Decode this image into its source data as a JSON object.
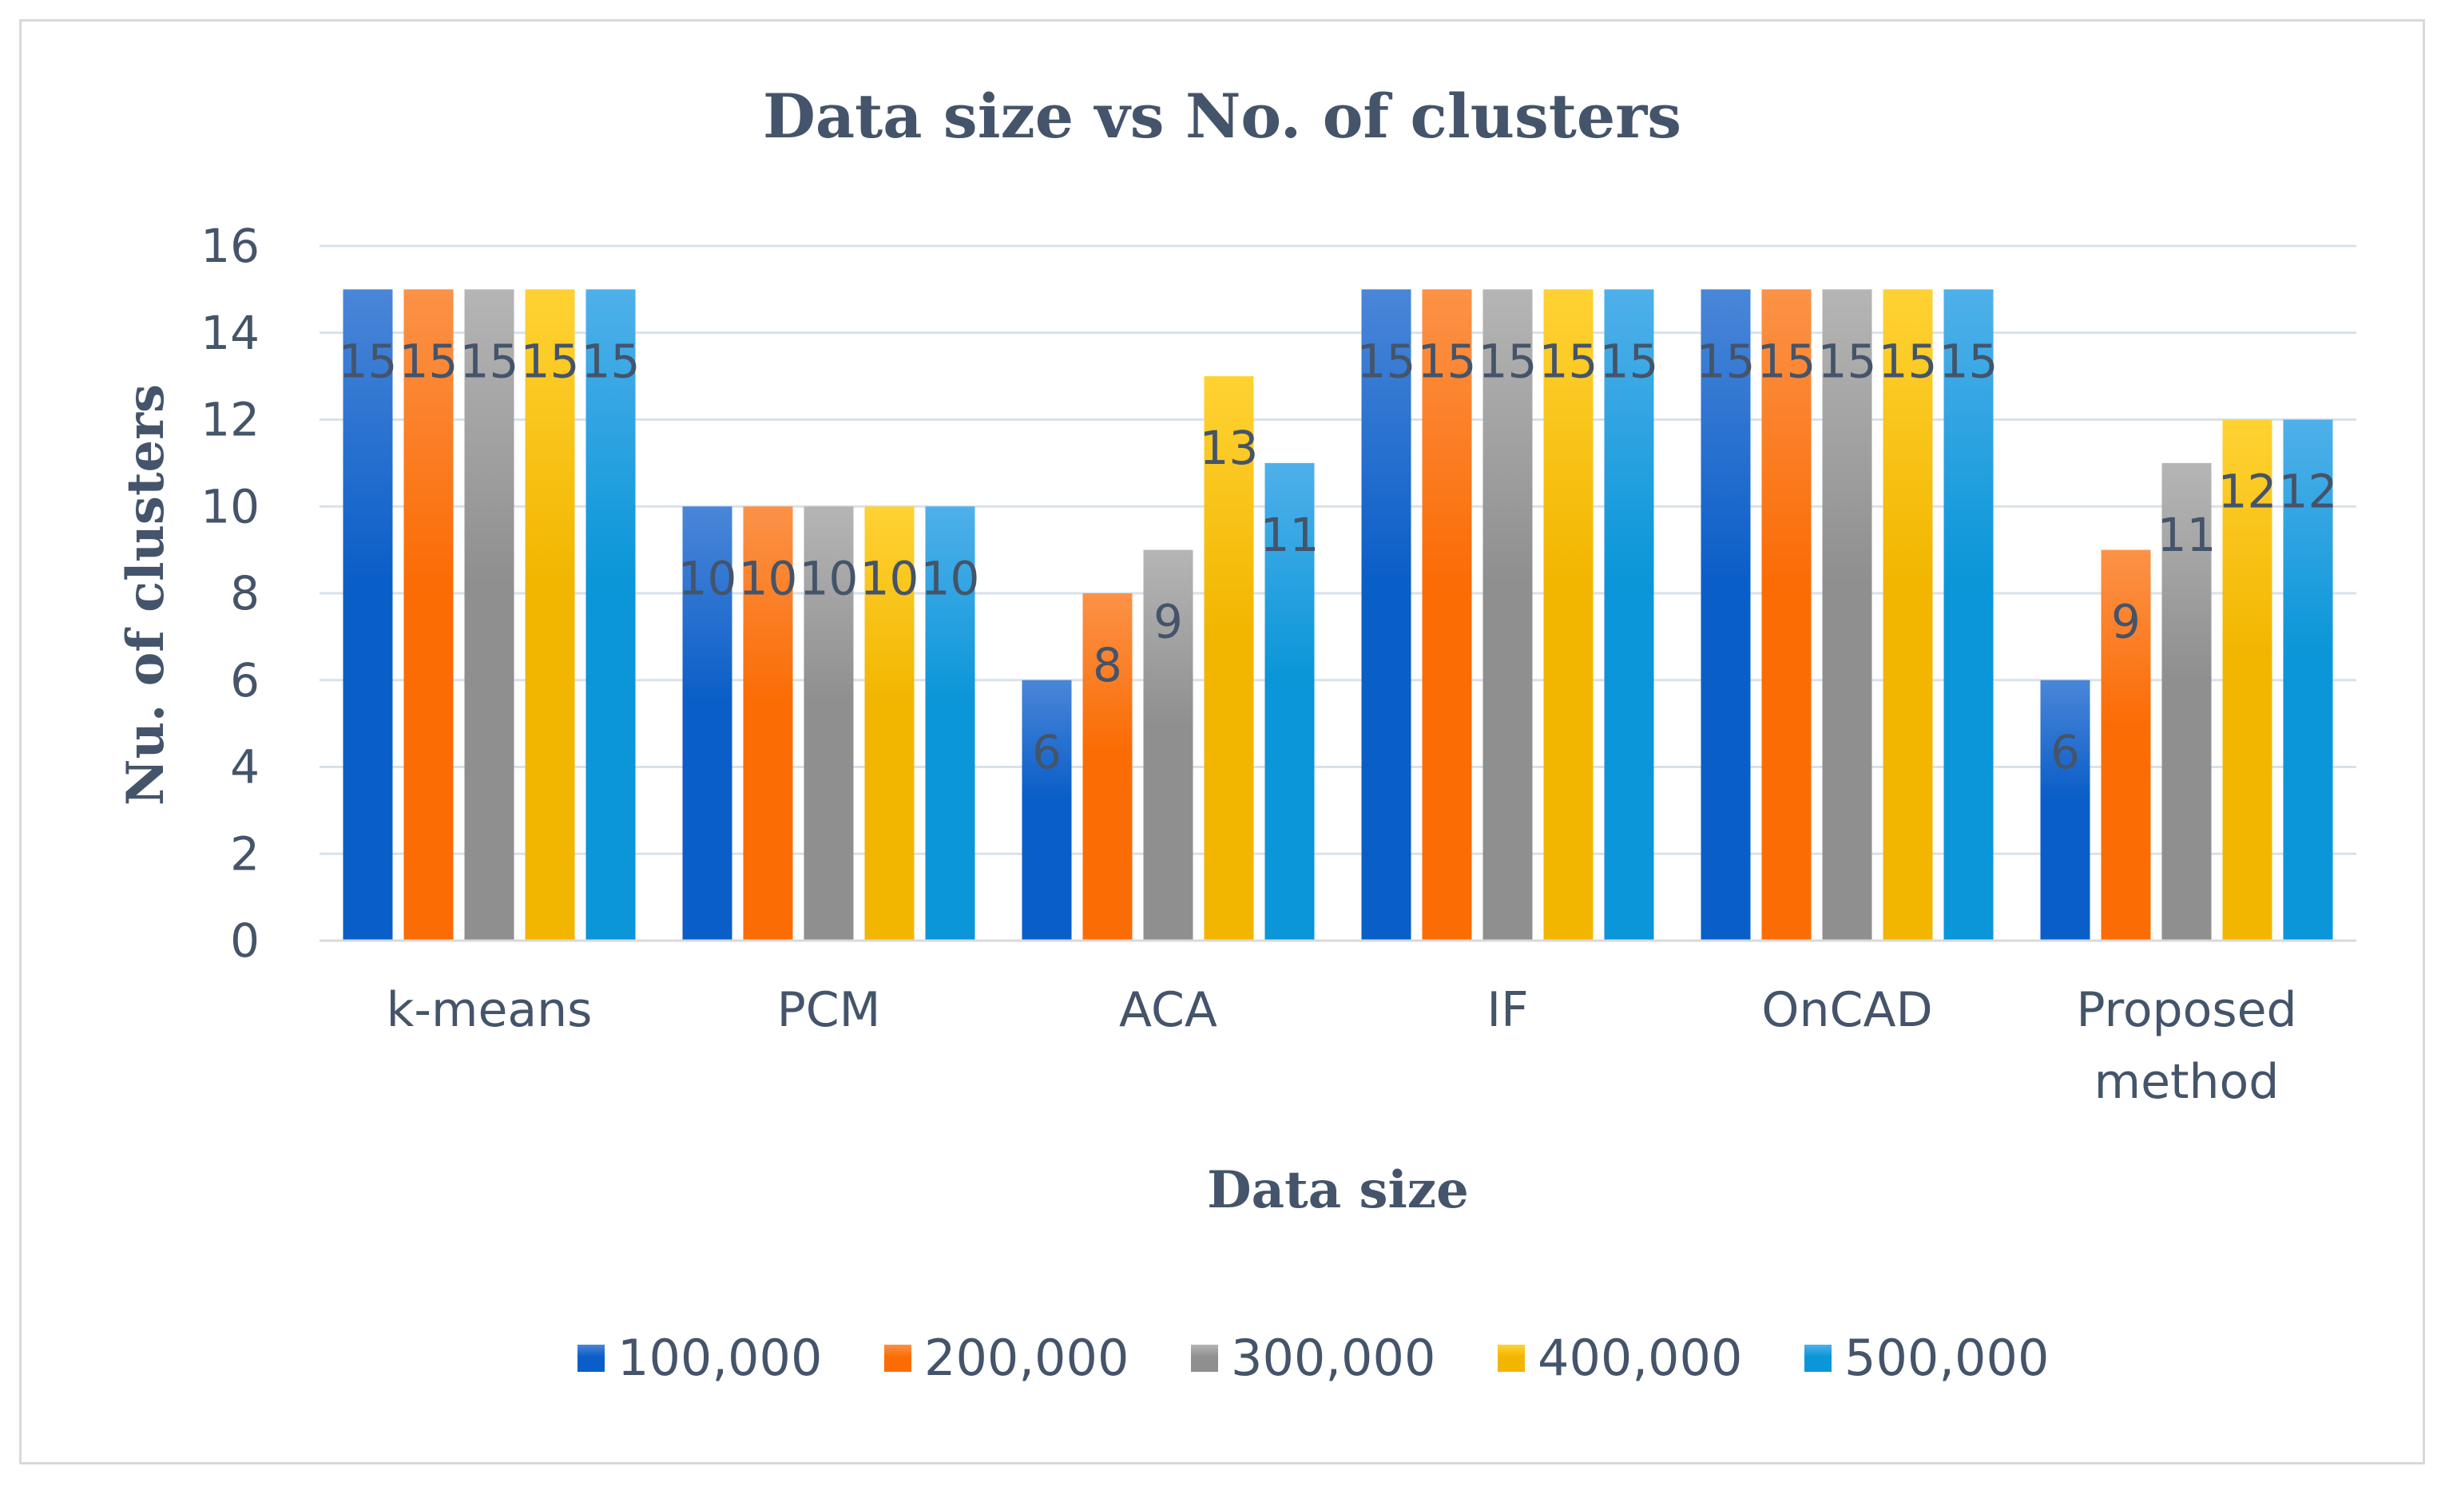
{
  "chart_data": {
    "type": "bar",
    "title": "Data size vs No. of clusters",
    "xlabel": "Data size",
    "ylabel": "Nu. of clusters",
    "ylim": [
      0,
      16
    ],
    "yticks": [
      "0",
      "2",
      "4",
      "6",
      "8",
      "10",
      "12",
      "14",
      "16"
    ],
    "grid": true,
    "legend_position": "bottom",
    "categories": [
      [
        "k-means"
      ],
      [
        "PCM"
      ],
      [
        "ACA"
      ],
      [
        "IF"
      ],
      [
        "OnCAD"
      ],
      [
        "Proposed",
        "method"
      ]
    ],
    "series": [
      {
        "name": "100,000",
        "color_top": "#4a86d8",
        "color_bottom": "#0a5ec8",
        "values": [
          15,
          10,
          6,
          15,
          15,
          6
        ]
      },
      {
        "name": "200,000",
        "color_top": "#fb9247",
        "color_bottom": "#fb6c05",
        "values": [
          15,
          10,
          8,
          15,
          15,
          9
        ]
      },
      {
        "name": "300,000",
        "color_top": "#b5b5b5",
        "color_bottom": "#8f8f8f",
        "values": [
          15,
          10,
          9,
          15,
          15,
          11
        ]
      },
      {
        "name": "400,000",
        "color_top": "#ffd233",
        "color_bottom": "#f2b600",
        "values": [
          15,
          10,
          13,
          15,
          15,
          12
        ]
      },
      {
        "name": "500,000",
        "color_top": "#4fb0ea",
        "color_bottom": "#0a96d8",
        "values": [
          15,
          10,
          11,
          15,
          15,
          12
        ]
      }
    ]
  }
}
